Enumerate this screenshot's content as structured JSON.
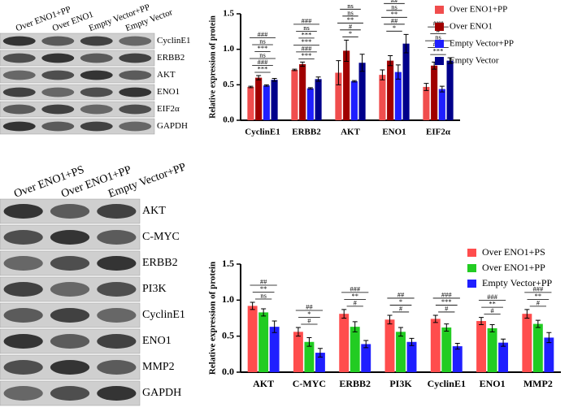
{
  "blots": [
    {
      "lanes": [
        "Over ENO1+PP",
        "Over ENO1",
        "Empty Vector+PP",
        "Empty Vector"
      ],
      "proteins": [
        "CyclinE1",
        "ERBB2",
        "AKT",
        "ENO1",
        "EIF2α",
        "GAPDH"
      ]
    },
    {
      "lanes": [
        "Over ENO1+PS",
        "Over ENO1+PP",
        "Empty Vector+PP"
      ],
      "proteins": [
        "AKT",
        "C-MYC",
        "ERBB2",
        "PI3K",
        "CyclinE1",
        "ENO1",
        "MMP2",
        "GAPDH"
      ]
    }
  ],
  "chart_data": [
    {
      "type": "bar",
      "ylabel": "Relative expression of protein",
      "categories": [
        "CyclinE1",
        "ERBB2",
        "AKT",
        "ENO1",
        "EIF2α"
      ],
      "series": [
        {
          "name": "Over ENO1+PP",
          "color": "#f04d4d",
          "values": [
            0.47,
            0.71,
            0.67,
            0.64,
            0.47
          ],
          "errors": [
            0.01,
            0.01,
            0.17,
            0.07,
            0.05
          ]
        },
        {
          "name": "Over ENO1",
          "color": "#a00000",
          "values": [
            0.6,
            0.79,
            0.98,
            0.84,
            0.77
          ],
          "errors": [
            0.03,
            0.03,
            0.15,
            0.07,
            0.05
          ]
        },
        {
          "name": "Empty Vector+PP",
          "color": "#1f1fff",
          "values": [
            0.49,
            0.45,
            0.55,
            0.68,
            0.44
          ],
          "errors": [
            0.01,
            0.01,
            0.01,
            0.1,
            0.04
          ]
        },
        {
          "name": "Empty Vector",
          "color": "#00008b",
          "values": [
            0.57,
            0.58,
            0.81,
            1.08,
            0.84
          ],
          "errors": [
            0.02,
            0.03,
            0.12,
            0.13,
            0.04
          ]
        }
      ],
      "annotations": [
        [
          "***",
          "###",
          "ns",
          "***",
          "ns",
          "###"
        ],
        [
          "***",
          "###",
          "***",
          "***",
          "ns",
          "###"
        ],
        [
          "*",
          "#",
          "**",
          "ns",
          "ns"
        ],
        [
          "*",
          "##",
          "**",
          "ns",
          "##",
          "###"
        ],
        [
          "***",
          "###",
          "ns",
          "#",
          "###"
        ]
      ],
      "ylim": [
        0,
        1.5
      ],
      "yticks": [
        {
          "value": 0,
          "label": "0.0"
        },
        {
          "value": 0.5,
          "label": "0.5"
        },
        {
          "value": 1,
          "label": "1.0"
        },
        {
          "value": 1.5,
          "label": "1.5"
        }
      ]
    },
    {
      "type": "bar",
      "ylabel": "Relative expression of protein",
      "categories": [
        "AKT",
        "C-MYC",
        "ERBB2",
        "PI3K",
        "CyclinE1",
        "ENO1",
        "MMP2"
      ],
      "series": [
        {
          "name": "Over ENO1+PS",
          "color": "#ff4d4d",
          "values": [
            0.92,
            0.56,
            0.81,
            0.73,
            0.74,
            0.71,
            0.81
          ],
          "errors": [
            0.05,
            0.06,
            0.06,
            0.06,
            0.05,
            0.05,
            0.06
          ]
        },
        {
          "name": "Over ENO1+PP",
          "color": "#22cc22",
          "values": [
            0.83,
            0.42,
            0.63,
            0.56,
            0.62,
            0.61,
            0.67
          ],
          "errors": [
            0.05,
            0.06,
            0.07,
            0.06,
            0.05,
            0.05,
            0.05
          ]
        },
        {
          "name": "Empty Vector+PP",
          "color": "#1f1fff",
          "values": [
            0.63,
            0.27,
            0.39,
            0.42,
            0.36,
            0.41,
            0.48
          ],
          "errors": [
            0.08,
            0.06,
            0.05,
            0.05,
            0.04,
            0.05,
            0.07
          ]
        }
      ],
      "annotations": [
        [
          "ns",
          "**",
          "##"
        ],
        [
          "#",
          "*",
          "##"
        ],
        [
          "#",
          "**",
          "###"
        ],
        [
          "#",
          "*",
          "##"
        ],
        [
          "#",
          "***",
          "###"
        ],
        [
          "#",
          "**",
          "###"
        ],
        [
          "#",
          "**",
          "###"
        ]
      ],
      "ylim": [
        0,
        1.5
      ],
      "yticks": [
        {
          "value": 0,
          "label": "0.0"
        },
        {
          "value": 0.5,
          "label": "0.5"
        },
        {
          "value": 1,
          "label": "1.0"
        },
        {
          "value": 1.5,
          "label": "1.5"
        }
      ]
    }
  ]
}
